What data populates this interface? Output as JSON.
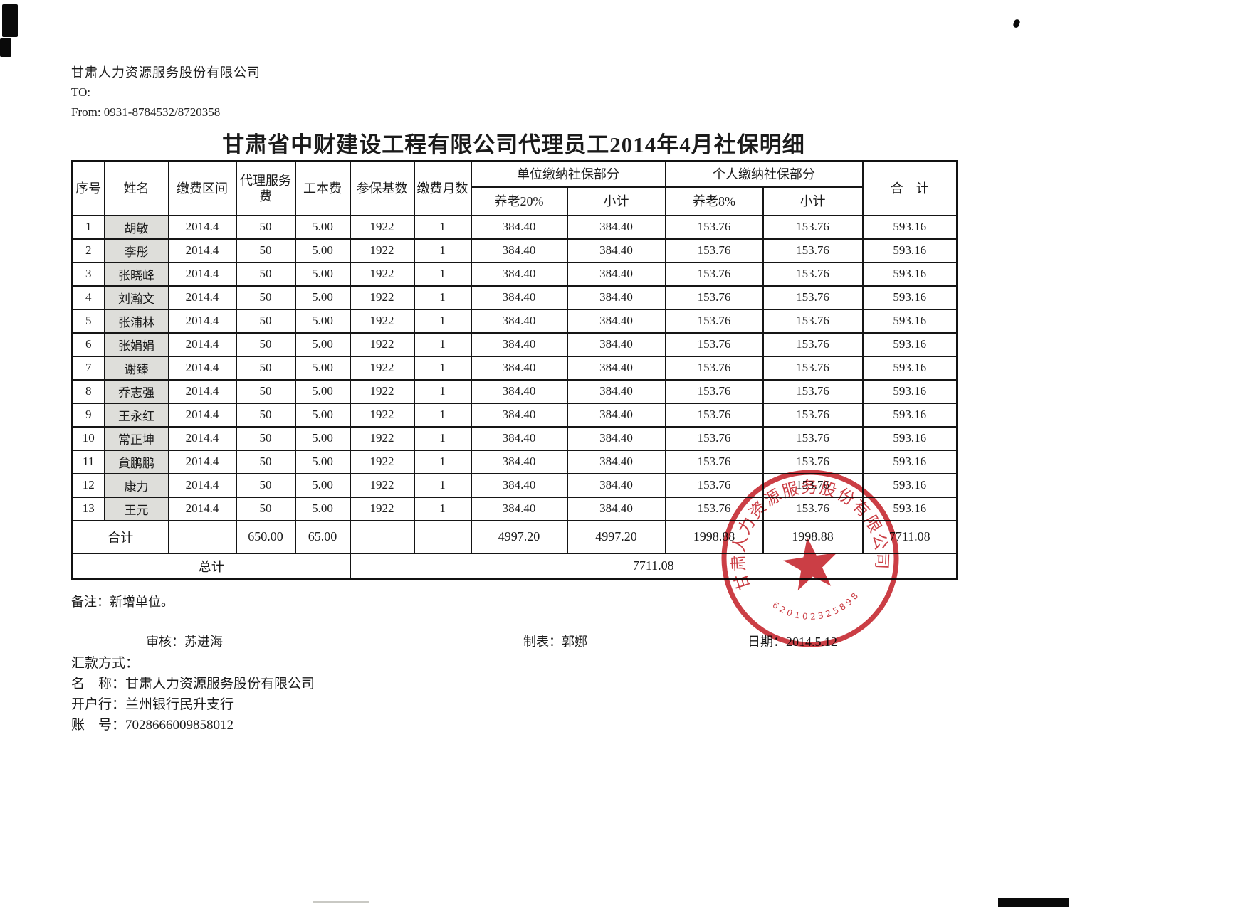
{
  "letterhead": {
    "company": "甘肃人力资源服务股份有限公司",
    "to": "TO:",
    "from": "From: 0931-8784532/8720358"
  },
  "title": "甘肃省中财建设工程有限公司代理员工2014年4月社保明细",
  "table": {
    "headers": {
      "seq": "序号",
      "name": "姓名",
      "period": "缴费区间",
      "agency_fee": "代理服务费",
      "cost_fee": "工本费",
      "base": "参保基数",
      "months": "缴费月数",
      "employer_group": "单位缴纳社保部分",
      "personal_group": "个人缴纳社保部分",
      "pension20": "养老20%",
      "unit_subtotal": "小计",
      "pension8": "养老8%",
      "personal_subtotal": "小计",
      "total": "合　计"
    },
    "col_keys": [
      "seq",
      "name",
      "period",
      "agency-fee",
      "cost-fee",
      "base",
      "months",
      "pension20",
      "unit-subtotal",
      "pension8",
      "personal-subtotal",
      "total"
    ],
    "rows": [
      [
        "1",
        "胡敏",
        "2014.4",
        "50",
        "5.00",
        "1922",
        "1",
        "384.40",
        "384.40",
        "153.76",
        "153.76",
        "593.16"
      ],
      [
        "2",
        "李彤",
        "2014.4",
        "50",
        "5.00",
        "1922",
        "1",
        "384.40",
        "384.40",
        "153.76",
        "153.76",
        "593.16"
      ],
      [
        "3",
        "张晓峰",
        "2014.4",
        "50",
        "5.00",
        "1922",
        "1",
        "384.40",
        "384.40",
        "153.76",
        "153.76",
        "593.16"
      ],
      [
        "4",
        "刘瀚文",
        "2014.4",
        "50",
        "5.00",
        "1922",
        "1",
        "384.40",
        "384.40",
        "153.76",
        "153.76",
        "593.16"
      ],
      [
        "5",
        "张浦林",
        "2014.4",
        "50",
        "5.00",
        "1922",
        "1",
        "384.40",
        "384.40",
        "153.76",
        "153.76",
        "593.16"
      ],
      [
        "6",
        "张娟娟",
        "2014.4",
        "50",
        "5.00",
        "1922",
        "1",
        "384.40",
        "384.40",
        "153.76",
        "153.76",
        "593.16"
      ],
      [
        "7",
        "谢臻",
        "2014.4",
        "50",
        "5.00",
        "1922",
        "1",
        "384.40",
        "384.40",
        "153.76",
        "153.76",
        "593.16"
      ],
      [
        "8",
        "乔志强",
        "2014.4",
        "50",
        "5.00",
        "1922",
        "1",
        "384.40",
        "384.40",
        "153.76",
        "153.76",
        "593.16"
      ],
      [
        "9",
        "王永红",
        "2014.4",
        "50",
        "5.00",
        "1922",
        "1",
        "384.40",
        "384.40",
        "153.76",
        "153.76",
        "593.16"
      ],
      [
        "10",
        "常正坤",
        "2014.4",
        "50",
        "5.00",
        "1922",
        "1",
        "384.40",
        "384.40",
        "153.76",
        "153.76",
        "593.16"
      ],
      [
        "11",
        "貟鹏鹏",
        "2014.4",
        "50",
        "5.00",
        "1922",
        "1",
        "384.40",
        "384.40",
        "153.76",
        "153.76",
        "593.16"
      ],
      [
        "12",
        "康力",
        "2014.4",
        "50",
        "5.00",
        "1922",
        "1",
        "384.40",
        "384.40",
        "153.76",
        "153.76",
        "593.16"
      ],
      [
        "13",
        "王元",
        "2014.4",
        "50",
        "5.00",
        "1922",
        "1",
        "384.40",
        "384.40",
        "153.76",
        "153.76",
        "593.16"
      ]
    ],
    "sum_row": {
      "label": "合计",
      "agency_fee": "650.00",
      "cost_fee": "65.00",
      "pension20": "4997.20",
      "unit_subtotal": "4997.20",
      "pension8": "1998.88",
      "personal_subtotal": "1998.88",
      "total": "7711.08"
    },
    "grand_row": {
      "label": "总计",
      "value": "7711.08"
    }
  },
  "footer": {
    "note": "备注：新增单位。",
    "reviewer_label": "审核：",
    "reviewer": "苏进海",
    "preparer_label": "制表：",
    "preparer": "郭娜",
    "date_label": "日期：",
    "date": "2014.5.12",
    "remit_title": "汇款方式：",
    "account_name_label": "名　称：",
    "account_name": "甘肃人力资源服务股份有限公司",
    "bank_label": "开户行：",
    "bank": "兰州银行民升支行",
    "account_no_label": "账　号：",
    "account_no": "7028666009858012"
  },
  "stamp": {
    "ring_text": "甘肃人力资源服务股份有限公司",
    "number": "620102325898",
    "color": "#c4232b"
  }
}
